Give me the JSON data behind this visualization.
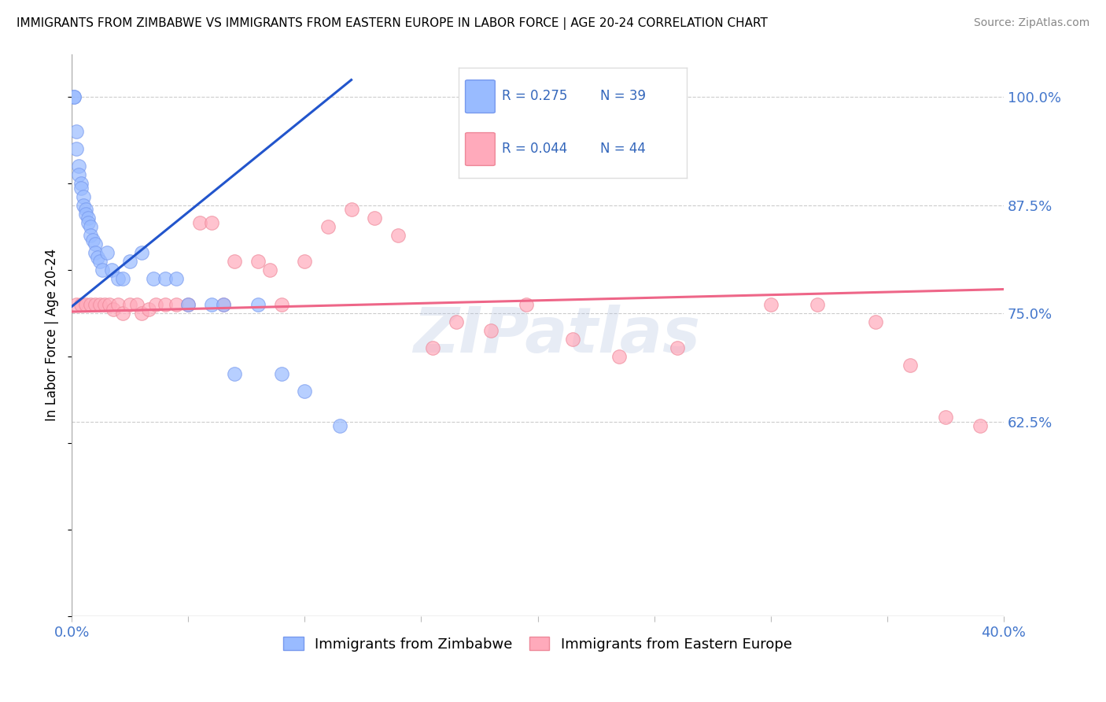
{
  "title": "IMMIGRANTS FROM ZIMBABWE VS IMMIGRANTS FROM EASTERN EUROPE IN LABOR FORCE | AGE 20-24 CORRELATION CHART",
  "source": "Source: ZipAtlas.com",
  "ylabel": "In Labor Force | Age 20-24",
  "xlim": [
    0.0,
    0.4
  ],
  "ylim": [
    0.4,
    1.05
  ],
  "xticks": [
    0.0,
    0.05,
    0.1,
    0.15,
    0.2,
    0.25,
    0.3,
    0.35,
    0.4
  ],
  "xticklabels": [
    "0.0%",
    "",
    "",
    "",
    "",
    "",
    "",
    "",
    "40.0%"
  ],
  "ytick_positions": [
    0.625,
    0.75,
    0.875,
    1.0
  ],
  "ytick_labels": [
    "62.5%",
    "75.0%",
    "87.5%",
    "100.0%"
  ],
  "blue_color": "#99BBFF",
  "blue_edge_color": "#7799EE",
  "pink_color": "#FFAABB",
  "pink_edge_color": "#EE8899",
  "blue_line_color": "#2255CC",
  "pink_line_color": "#EE6688",
  "R_blue": 0.275,
  "N_blue": 39,
  "R_pink": 0.044,
  "N_pink": 44,
  "watermark": "ZIPatlas",
  "blue_points_x": [
    0.001,
    0.001,
    0.002,
    0.002,
    0.003,
    0.003,
    0.004,
    0.004,
    0.005,
    0.005,
    0.006,
    0.006,
    0.007,
    0.007,
    0.008,
    0.008,
    0.009,
    0.01,
    0.01,
    0.011,
    0.012,
    0.013,
    0.015,
    0.017,
    0.02,
    0.022,
    0.025,
    0.03,
    0.035,
    0.04,
    0.045,
    0.05,
    0.06,
    0.065,
    0.07,
    0.08,
    0.09,
    0.1,
    0.115
  ],
  "blue_points_y": [
    1.0,
    1.0,
    0.96,
    0.94,
    0.92,
    0.91,
    0.9,
    0.895,
    0.885,
    0.875,
    0.87,
    0.865,
    0.86,
    0.855,
    0.85,
    0.84,
    0.835,
    0.83,
    0.82,
    0.815,
    0.81,
    0.8,
    0.82,
    0.8,
    0.79,
    0.79,
    0.81,
    0.82,
    0.79,
    0.79,
    0.79,
    0.76,
    0.76,
    0.76,
    0.68,
    0.76,
    0.68,
    0.66,
    0.62
  ],
  "pink_points_x": [
    0.002,
    0.004,
    0.006,
    0.008,
    0.01,
    0.012,
    0.014,
    0.016,
    0.018,
    0.02,
    0.022,
    0.025,
    0.028,
    0.03,
    0.033,
    0.036,
    0.04,
    0.045,
    0.05,
    0.055,
    0.06,
    0.065,
    0.07,
    0.08,
    0.085,
    0.09,
    0.1,
    0.11,
    0.12,
    0.13,
    0.14,
    0.155,
    0.165,
    0.18,
    0.195,
    0.215,
    0.235,
    0.26,
    0.3,
    0.32,
    0.345,
    0.36,
    0.375,
    0.39
  ],
  "pink_points_y": [
    0.76,
    0.76,
    0.76,
    0.76,
    0.76,
    0.76,
    0.76,
    0.76,
    0.755,
    0.76,
    0.75,
    0.76,
    0.76,
    0.75,
    0.755,
    0.76,
    0.76,
    0.76,
    0.76,
    0.855,
    0.855,
    0.76,
    0.81,
    0.81,
    0.8,
    0.76,
    0.81,
    0.85,
    0.87,
    0.86,
    0.84,
    0.71,
    0.74,
    0.73,
    0.76,
    0.72,
    0.7,
    0.71,
    0.76,
    0.76,
    0.74,
    0.69,
    0.63,
    0.62
  ],
  "blue_line_x": [
    0.0,
    0.12
  ],
  "blue_line_y": [
    0.758,
    1.02
  ],
  "pink_line_x": [
    0.0,
    0.4
  ],
  "pink_line_y": [
    0.752,
    0.778
  ]
}
